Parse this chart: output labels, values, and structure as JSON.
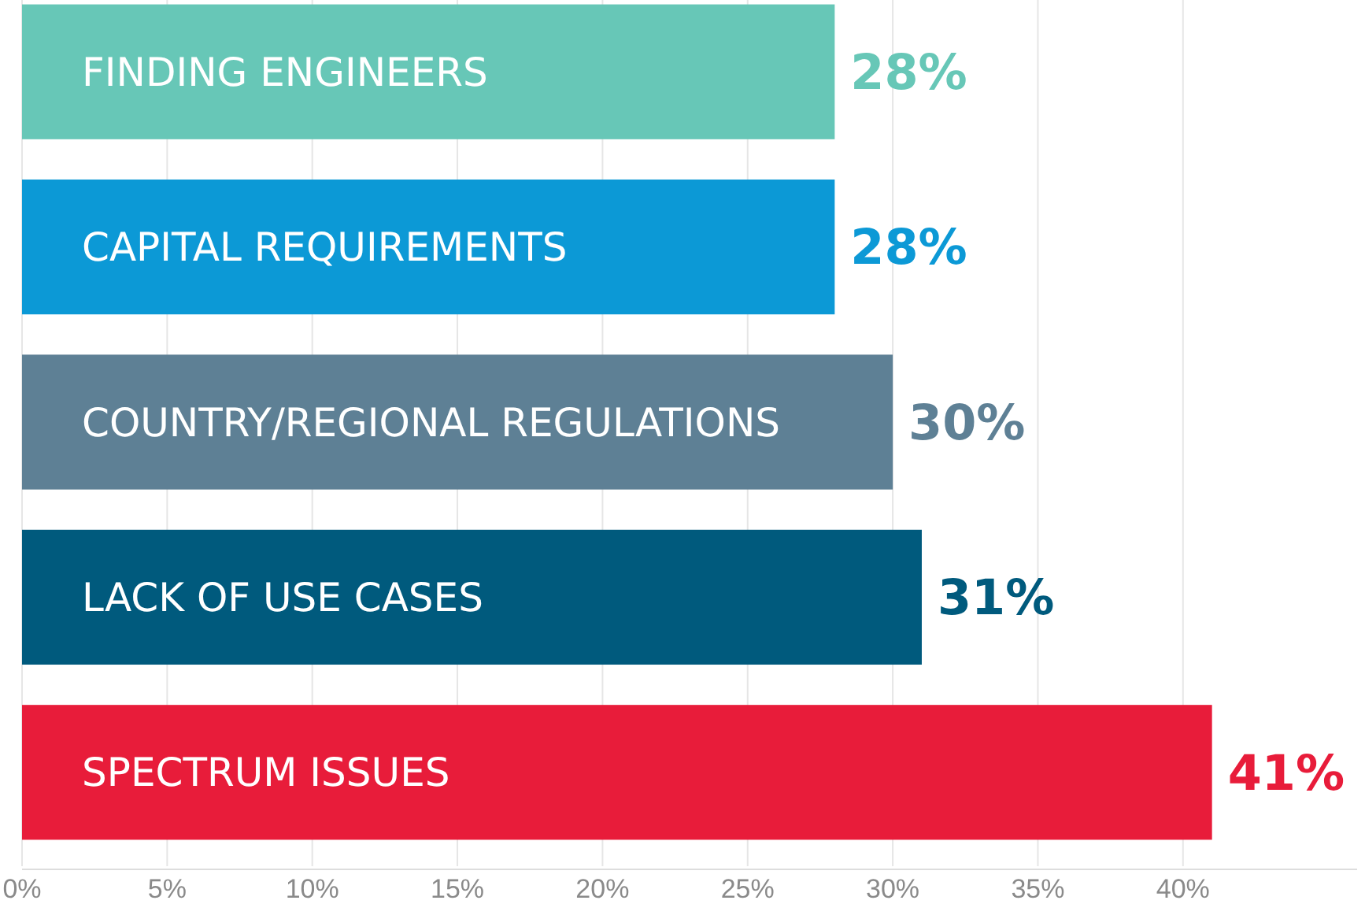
{
  "chart_data": {
    "type": "bar",
    "orientation": "horizontal",
    "categories": [
      "FINDING ENGINEERS",
      "CAPITAL REQUIREMENTS",
      "COUNTRY/REGIONAL REGULATIONS",
      "LACK OF USE CASES",
      "SPECTRUM ISSUES"
    ],
    "values": [
      28,
      28,
      30,
      31,
      41
    ],
    "colors": [
      "#67c7b7",
      "#0c99d6",
      "#5e8095",
      "#005a7d",
      "#e81c3a"
    ],
    "value_labels": [
      "28%",
      "28%",
      "30%",
      "31%",
      "41%"
    ],
    "xlim": [
      0,
      46
    ],
    "xticks": [
      {
        "value": 0,
        "label": "0%"
      },
      {
        "value": 5,
        "label": "5%"
      },
      {
        "value": 10,
        "label": "10%"
      },
      {
        "value": 15,
        "label": "15%"
      },
      {
        "value": 20,
        "label": "20%"
      },
      {
        "value": 25,
        "label": "25%"
      },
      {
        "value": 30,
        "label": "30%"
      },
      {
        "value": 35,
        "label": "35%"
      },
      {
        "value": 40,
        "label": "40%"
      }
    ],
    "grid": "x"
  }
}
